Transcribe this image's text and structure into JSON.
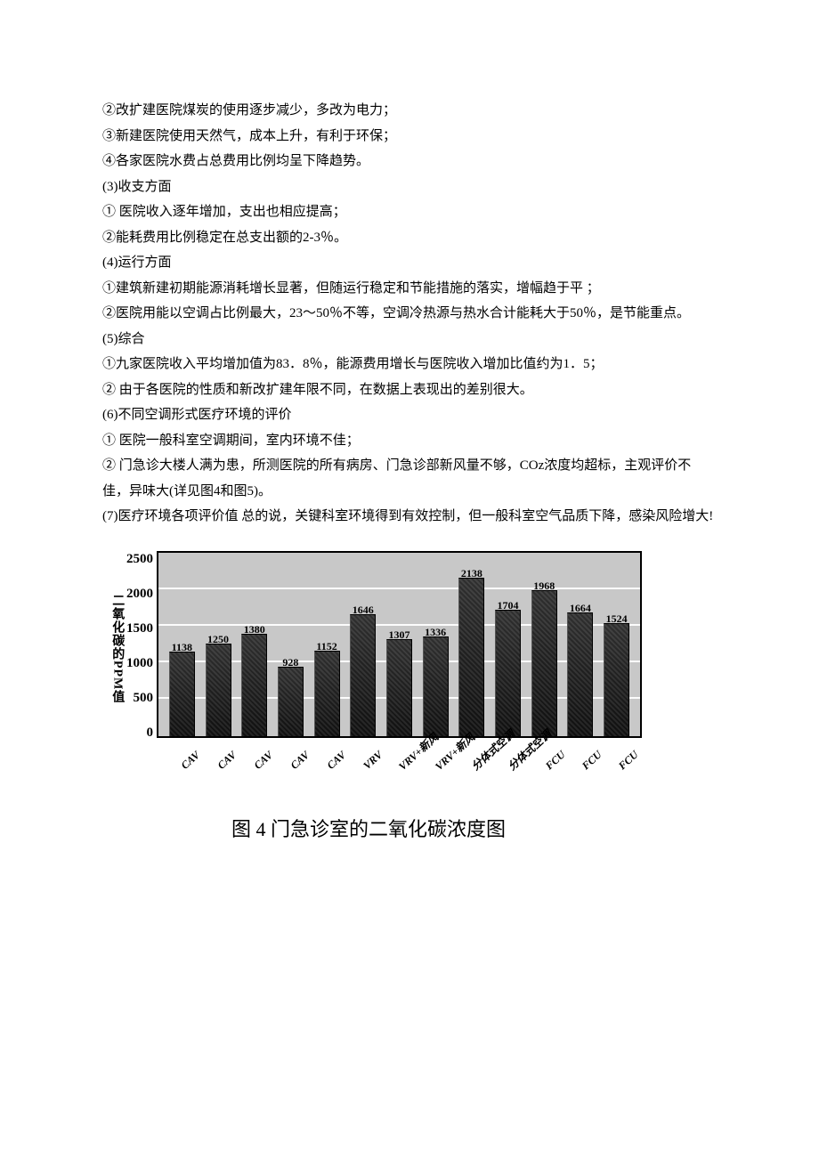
{
  "text_lines": [
    "②改扩建医院煤炭的使用逐步减少，多改为电力；",
    "③新建医院使用天然气，成本上升，有利于环保；",
    "④各家医院水费占总费用比例均呈下降趋势。",
    "(3)收支方面",
    "① 医院收入逐年增加，支出也相应提高；",
    "②能耗费用比例稳定在总支出额的2-3％。",
    "(4)运行方面",
    "①建筑新建初期能源消耗增长显著，但随运行稳定和节能措施的落实，增幅趋于平 ；",
    "②医院用能以空调占比例最大，23～50％不等，空调冷热源与热水合计能耗大于50％，是节能重点。",
    "(5)综合",
    "①九家医院收入平均增加值为83．8％，能源费用增长与医院收入增加比值约为1．5；",
    "② 由于各医院的性质和新改扩建年限不同，在数据上表现出的差别很大。",
    "(6)不同空调形式医疗环境的评价",
    "① 医院一般科室空调期间，室内环境不佳；",
    "② 门急诊大楼人满为患，所测医院的所有病房、门急诊部新风量不够，COz浓度均超标，主观评价不佳，异味大(详见图4和图5)。",
    "(7)医疗环境各项评价值 总的说，关键科室环境得到有效控制，但一般科室空气品质下降，感染风险增大!"
  ],
  "chart": {
    "type": "bar",
    "y_axis_label": "二氧化碳的PPM值",
    "y_ticks": [
      "2500",
      "2000",
      "1500",
      "1000",
      "500",
      "0"
    ],
    "y_max": 2500,
    "grid_positions_pct": [
      20,
      40,
      60,
      80
    ],
    "bar_color": "#2a2a2a",
    "plot_bg": "#c8c8c8",
    "grid_color": "#fcfcfc",
    "bars": [
      {
        "label": "CAV",
        "value": 1138
      },
      {
        "label": "CAV",
        "value": 1250
      },
      {
        "label": "CAV",
        "value": 1380
      },
      {
        "label": "CAV",
        "value": 928
      },
      {
        "label": "CAV",
        "value": 1152
      },
      {
        "label": "VRV",
        "value": 1646
      },
      {
        "label": "VRV+新风",
        "value": 1307
      },
      {
        "label": "VRV+新风",
        "value": 1336
      },
      {
        "label": "分体式空调",
        "value": 2138
      },
      {
        "label": "分体式空调",
        "value": 1704
      },
      {
        "label": "FCU",
        "value": 1968
      },
      {
        "label": "FCU",
        "value": 1664
      },
      {
        "label": "FCU",
        "value": 1524
      }
    ],
    "caption": "图 4 门急诊室的二氧化碳浓度图"
  }
}
